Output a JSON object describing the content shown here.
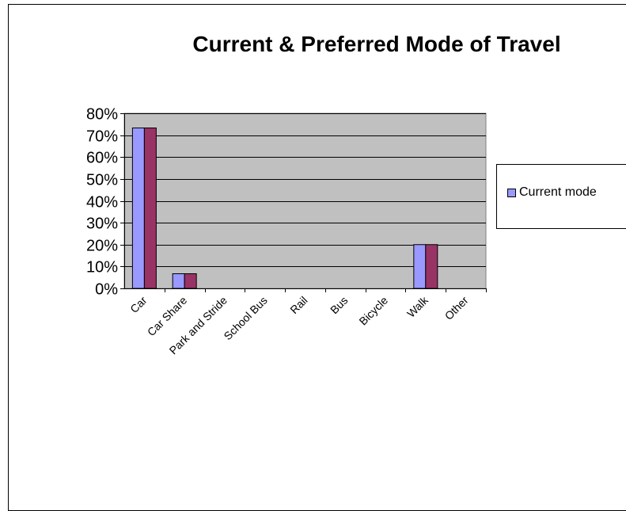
{
  "chart_data": {
    "type": "bar",
    "title": "Current & Preferred Mode of Travel",
    "categories": [
      "Car",
      "Car Share",
      "Park and Stride",
      "School Bus",
      "Rail",
      "Bus",
      "Bicycle",
      "Walk",
      "Other"
    ],
    "series": [
      {
        "name": "Current mode",
        "values": [
          0.733,
          0.067,
          0,
          0,
          0,
          0,
          0,
          0.2,
          0
        ],
        "color": "#9999FF"
      },
      {
        "values": [
          0.733,
          0.067,
          0,
          0,
          0,
          0,
          0,
          0.2,
          0
        ],
        "color": "#993366"
      }
    ],
    "yticks": [
      "0%",
      "10%",
      "20%",
      "30%",
      "40%",
      "50%",
      "60%",
      "70%",
      "80%"
    ],
    "ylim": [
      0,
      0.8
    ],
    "xlabel": "",
    "ylabel": "",
    "grid": true,
    "plot_background": "#C0C0C0",
    "legend_position": "right"
  }
}
